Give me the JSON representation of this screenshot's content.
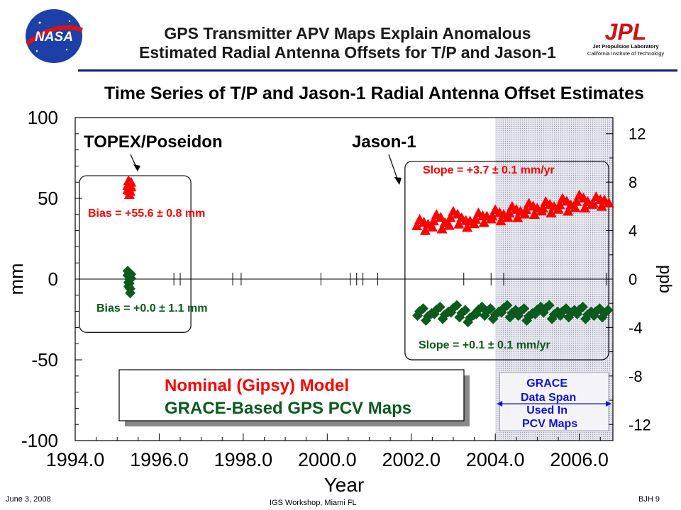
{
  "header": {
    "title_line1": "GPS Transmitter APV Maps Explain Anomalous",
    "title_line2": "Estimated Radial Antenna Offsets for T/P and Jason-1",
    "nasa_logo_text": "NASA",
    "jpl_logo_text": "JPL",
    "jpl_subtitle1": "Jet Propulsion Laboratory",
    "jpl_subtitle2": "California Institute of Technology"
  },
  "footer": {
    "date": "June 3, 2008",
    "event": "IGS Workshop, Miami FL",
    "page": "BJH 9"
  },
  "colors": {
    "nominal": "#ff0000",
    "grace": "#0b5a1e",
    "grace_box_text": "#1010e0",
    "rule": "#0b1f7a"
  },
  "chart_data": {
    "type": "scatter",
    "title": "Time Series of T/P and Jason-1 Radial Antenna Offset Estimates",
    "xlabel": "Year",
    "ylabel": "mm",
    "y2label": "ppb",
    "xlim": [
      1994.0,
      2006.8
    ],
    "ylim": [
      -100,
      100
    ],
    "y2lim": [
      -13.33,
      13.33
    ],
    "xticks": [
      "1994.0",
      "1996.0",
      "1998.0",
      "2000.0",
      "2002.0",
      "2004.0",
      "2006.0"
    ],
    "yticks": [
      "100",
      "50",
      "0",
      "-50",
      "-100"
    ],
    "y2ticks": [
      "12",
      "8",
      "4",
      "0",
      "-4",
      "-8",
      "-12"
    ],
    "legend": {
      "placement": "bottom-left",
      "entries": [
        {
          "label": "Nominal (Gipsy) Model",
          "color": "#ff0000"
        },
        {
          "label": "GRACE-Based GPS PCV Maps",
          "color": "#0b5a1e"
        }
      ]
    },
    "annotations": {
      "topex_label": "TOPEX/Poseidon",
      "jason_label": "Jason-1",
      "topex_nominal_bias": "Bias = +55.6 ± 0.8 mm",
      "topex_grace_bias": "Bias = +0.0 ± 1.1 mm",
      "jason_nominal_slope": "Slope = +3.7 ± 0.1 mm/yr",
      "jason_grace_slope": "Slope = +0.1 ± 0.1 mm/yr",
      "grace_span_line1": "GRACE",
      "grace_span_line2": "Data Span",
      "grace_span_line3": "Used In",
      "grace_span_line4": "PCV Maps"
    },
    "grace_span": [
      2004.0,
      2006.8
    ],
    "event_marks_x": [
      1996.35,
      1996.5,
      1997.75,
      1997.95,
      1999.85,
      2000.55,
      2000.7,
      2000.85,
      2001.2,
      2003.25,
      2003.9,
      2004.2,
      2006.65
    ],
    "series": [
      {
        "name": "TOPEX/Poseidon Nominal",
        "color": "#ff0000",
        "x": [
          1995.25,
          1995.27,
          1995.29,
          1995.31,
          1995.33
        ],
        "y": [
          58,
          61,
          55,
          57,
          60
        ]
      },
      {
        "name": "TOPEX/Poseidon GRACE",
        "color": "#0b5a1e",
        "x": [
          1995.25,
          1995.27,
          1995.29,
          1995.31,
          1995.33
        ],
        "y": [
          5,
          -2,
          0,
          -6,
          3
        ]
      },
      {
        "name": "Jason-1 Nominal",
        "color": "#ff0000",
        "x": [
          2002.2,
          2002.4,
          2002.6,
          2002.8,
          2003.0,
          2003.2,
          2003.4,
          2003.6,
          2003.8,
          2004.0,
          2004.2,
          2004.4,
          2004.6,
          2004.8,
          2005.0,
          2005.2,
          2005.4,
          2005.6,
          2005.8,
          2006.0,
          2006.2,
          2006.4,
          2006.6
        ],
        "y": [
          37,
          34,
          40,
          35,
          42,
          38,
          36,
          41,
          39,
          43,
          40,
          45,
          42,
          47,
          44,
          48,
          45,
          50,
          46,
          52,
          48,
          51,
          49
        ]
      },
      {
        "name": "Jason-1 GRACE",
        "color": "#0b5a1e",
        "x": [
          2002.2,
          2002.4,
          2002.6,
          2002.8,
          2003.0,
          2003.2,
          2003.4,
          2003.6,
          2003.8,
          2004.0,
          2004.2,
          2004.4,
          2004.6,
          2004.8,
          2005.0,
          2005.2,
          2005.4,
          2005.6,
          2005.8,
          2006.0,
          2006.2,
          2006.4,
          2006.6
        ],
        "y": [
          -20,
          -23,
          -19,
          -22,
          -18,
          -21,
          -24,
          -19,
          -20,
          -22,
          -18,
          -21,
          -20,
          -23,
          -19,
          -18,
          -22,
          -20,
          -21,
          -19,
          -22,
          -20,
          -21
        ]
      }
    ]
  }
}
